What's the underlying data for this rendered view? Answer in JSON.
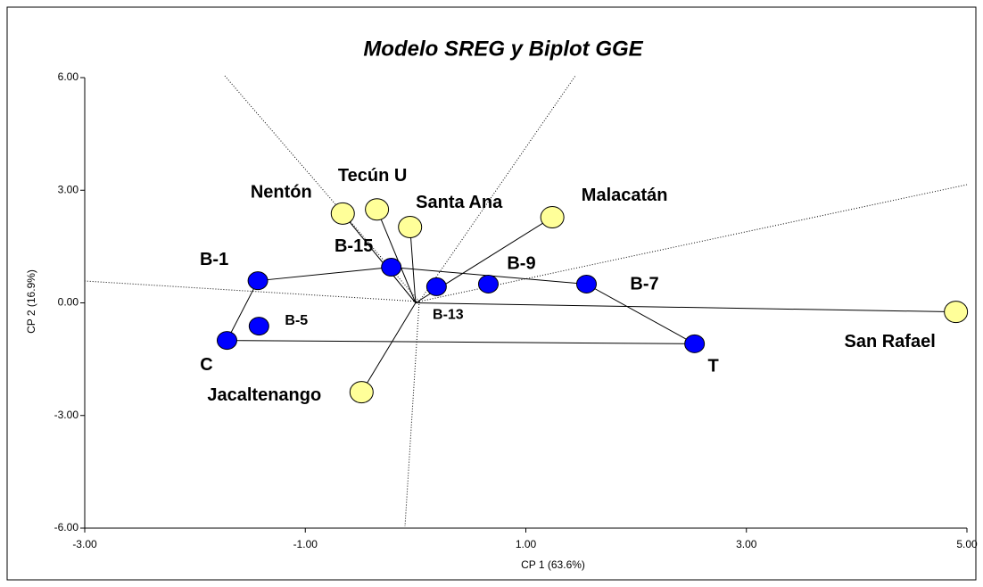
{
  "chart_data": {
    "type": "scatter",
    "title": "Modelo SREG y Biplot GGE",
    "xlabel": "CP 1 (63.6%)",
    "ylabel": "CP 2 (16.9%)",
    "xlim": [
      -3,
      5
    ],
    "ylim": [
      -6,
      6
    ],
    "xticks": [
      {
        "value": -3,
        "label": "-3.00"
      },
      {
        "value": -1,
        "label": "-1.00"
      },
      {
        "value": 1,
        "label": "1.00"
      },
      {
        "value": 3,
        "label": "3.00"
      },
      {
        "value": 5,
        "label": "5.00"
      }
    ],
    "yticks": [
      {
        "value": -6,
        "label": "-6.00"
      },
      {
        "value": -3,
        "label": "-3.00"
      },
      {
        "value": 0,
        "label": "0.00"
      },
      {
        "value": 3,
        "label": "3.00"
      },
      {
        "value": 6,
        "label": "6.00"
      }
    ],
    "series": [
      {
        "color": "#0000ff",
        "labels": [
          "B-1",
          "B-5",
          "C",
          "B-15",
          "B-13",
          "B-9",
          "B-7",
          "T"
        ],
        "x": [
          -1.43,
          -1.42,
          -1.71,
          -0.22,
          0.19,
          0.66,
          1.55,
          2.53
        ],
        "values": [
          0.59,
          -0.62,
          -1.0,
          0.95,
          0.43,
          0.5,
          0.5,
          -1.09
        ]
      },
      {
        "color": "#ffff99",
        "labels": [
          "Nentón",
          "Tecún U",
          "Santa Ana",
          "Malacatán",
          "San Rafael",
          "Jacaltenango"
        ],
        "x": [
          -0.66,
          -0.35,
          -0.05,
          1.24,
          4.9,
          -0.49
        ],
        "values": [
          2.38,
          2.49,
          2.02,
          2.28,
          -0.24,
          -2.38
        ]
      }
    ]
  }
}
